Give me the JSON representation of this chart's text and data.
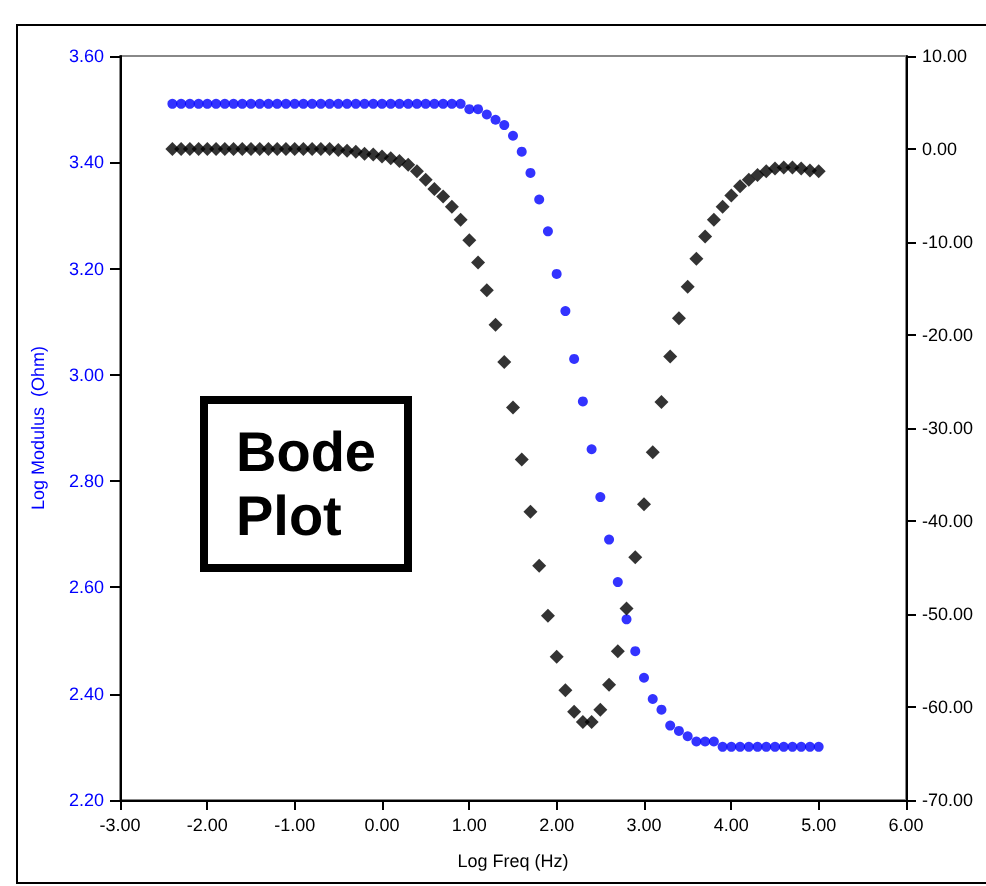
{
  "chart_data": {
    "type": "scatter",
    "xlabel": "Log Freq (Hz)",
    "ylabel": "Log Modulus  (Ohm)",
    "annotations": [
      "Bode\nPlot"
    ],
    "x": [
      -2.4,
      -2.3,
      -2.2,
      -2.1,
      -2.0,
      -1.9,
      -1.8,
      -1.7,
      -1.6,
      -1.5,
      -1.4,
      -1.3,
      -1.2,
      -1.1,
      -1.0,
      -0.9,
      -0.8,
      -0.7,
      -0.6,
      -0.5,
      -0.4,
      -0.3,
      -0.2,
      -0.1,
      0.0,
      0.1,
      0.2,
      0.3,
      0.4,
      0.5,
      0.6,
      0.7,
      0.8,
      0.9,
      1.0,
      1.1,
      1.2,
      1.3,
      1.4,
      1.5,
      1.6,
      1.7,
      1.8,
      1.9,
      2.0,
      2.1,
      2.2,
      2.3,
      2.4,
      2.5,
      2.6,
      2.7,
      2.8,
      2.9,
      3.0,
      3.1,
      3.2,
      3.3,
      3.4,
      3.5,
      3.6,
      3.7,
      3.8,
      3.9,
      4.0,
      4.1,
      4.2,
      4.3,
      4.4,
      4.5,
      4.6,
      4.7,
      4.8,
      4.9,
      5.0
    ],
    "series": [
      {
        "color": "#0000ff",
        "marker": "circle",
        "values": [
          3.51,
          3.51,
          3.51,
          3.51,
          3.51,
          3.51,
          3.51,
          3.51,
          3.51,
          3.51,
          3.51,
          3.51,
          3.51,
          3.51,
          3.51,
          3.51,
          3.51,
          3.51,
          3.51,
          3.51,
          3.51,
          3.51,
          3.51,
          3.51,
          3.51,
          3.51,
          3.51,
          3.51,
          3.51,
          3.51,
          3.51,
          3.51,
          3.51,
          3.51,
          3.5,
          3.5,
          3.49,
          3.48,
          3.47,
          3.45,
          3.42,
          3.38,
          3.33,
          3.27,
          3.19,
          3.12,
          3.03,
          2.95,
          2.86,
          2.77,
          2.69,
          2.61,
          2.54,
          2.48,
          2.43,
          2.39,
          2.37,
          2.34,
          2.33,
          2.32,
          2.31,
          2.31,
          2.31,
          2.3,
          2.3,
          2.3,
          2.3,
          2.3,
          2.3,
          2.3,
          2.3,
          2.3,
          2.3,
          2.3,
          2.3
        ]
      },
      {
        "color": "#000000",
        "marker": "diamond",
        "axis": "y2",
        "values": [
          0.0,
          0.0,
          0.0,
          0.0,
          0.0,
          0.0,
          0.0,
          0.0,
          0.0,
          0.0,
          0.0,
          0.0,
          0.0,
          0.0,
          0.0,
          0.0,
          0.0,
          0.0,
          0.0,
          -0.1,
          -0.2,
          -0.3,
          -0.5,
          -0.6,
          -0.8,
          -1.0,
          -1.3,
          -1.7,
          -2.4,
          -3.3,
          -4.3,
          -5.1,
          -6.2,
          -7.6,
          -9.8,
          -12.2,
          -15.2,
          -18.9,
          -22.9,
          -27.8,
          -33.4,
          -39.0,
          -44.8,
          -50.2,
          -54.6,
          -58.2,
          -60.5,
          -61.6,
          -61.6,
          -60.3,
          -57.6,
          -54.0,
          -49.4,
          -43.9,
          -38.2,
          -32.6,
          -27.2,
          -22.3,
          -18.2,
          -14.8,
          -11.8,
          -9.4,
          -7.6,
          -6.2,
          -5.0,
          -4.0,
          -3.3,
          -2.8,
          -2.4,
          -2.1,
          -2.0,
          -2.0,
          -2.1,
          -2.3,
          -2.4
        ]
      }
    ],
    "xlim": [
      -3,
      6
    ],
    "xticks": [
      {
        "value": -3,
        "label": "-3.00"
      },
      {
        "value": -2,
        "label": "-2.00"
      },
      {
        "value": -1,
        "label": "-1.00"
      },
      {
        "value": 0,
        "label": "0.00"
      },
      {
        "value": 1,
        "label": "1.00"
      },
      {
        "value": 2,
        "label": "2.00"
      },
      {
        "value": 3,
        "label": "3.00"
      },
      {
        "value": 4,
        "label": "4.00"
      },
      {
        "value": 5,
        "label": "5.00"
      },
      {
        "value": 6,
        "label": "6.00"
      }
    ],
    "ylim": [
      2.2,
      3.6
    ],
    "yticks": [
      {
        "value": 2.2,
        "label": "2.20"
      },
      {
        "value": 2.4,
        "label": "2.40"
      },
      {
        "value": 2.6,
        "label": "2.60"
      },
      {
        "value": 2.8,
        "label": "2.80"
      },
      {
        "value": 3.0,
        "label": "3.00"
      },
      {
        "value": 3.2,
        "label": "3.20"
      },
      {
        "value": 3.4,
        "label": "3.40"
      },
      {
        "value": 3.6,
        "label": "3.60"
      }
    ],
    "y2lim": [
      -70,
      10
    ],
    "y2ticks": [
      {
        "value": -70,
        "label": "-70.00"
      },
      {
        "value": -60,
        "label": "-60.00"
      },
      {
        "value": -50,
        "label": "-50.00"
      },
      {
        "value": -40,
        "label": "-40.00"
      },
      {
        "value": -30,
        "label": "-30.00"
      },
      {
        "value": -20,
        "label": "-20.00"
      },
      {
        "value": -10,
        "label": "-10.00"
      },
      {
        "value": 0,
        "label": "0.00"
      },
      {
        "value": 10,
        "label": "10.00"
      }
    ],
    "grid": false
  }
}
